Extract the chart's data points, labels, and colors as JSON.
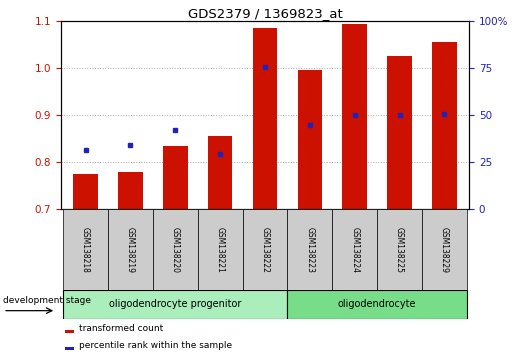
{
  "title": "GDS2379 / 1369823_at",
  "samples": [
    "GSM138218",
    "GSM138219",
    "GSM138220",
    "GSM138221",
    "GSM138222",
    "GSM138223",
    "GSM138224",
    "GSM138225",
    "GSM138229"
  ],
  "red_bars": [
    0.775,
    0.778,
    0.835,
    0.855,
    1.085,
    0.995,
    1.095,
    1.025,
    1.055
  ],
  "blue_dots": [
    0.826,
    0.836,
    0.868,
    0.818,
    1.002,
    0.878,
    0.9,
    0.9,
    0.902
  ],
  "ylim_left": [
    0.7,
    1.1
  ],
  "ylim_right": [
    0,
    100
  ],
  "yticks_left": [
    0.7,
    0.8,
    0.9,
    1.0,
    1.1
  ],
  "yticks_right": [
    0,
    25,
    50,
    75,
    100
  ],
  "bar_color": "#CC1100",
  "dot_color": "#2222BB",
  "bar_bottom": 0.7,
  "groups": [
    {
      "label": "oligodendrocyte progenitor",
      "start": 0,
      "end": 4,
      "color": "#AAEEBB"
    },
    {
      "label": "oligodendrocyte",
      "start": 5,
      "end": 8,
      "color": "#77DD88"
    }
  ],
  "legend_items": [
    {
      "color": "#CC1100",
      "label": "transformed count"
    },
    {
      "color": "#2222BB",
      "label": "percentile rank within the sample"
    }
  ],
  "dev_stage_label": "development stage",
  "bar_width": 0.55,
  "grid_linestyle": ":",
  "grid_color": "#AAAAAA"
}
